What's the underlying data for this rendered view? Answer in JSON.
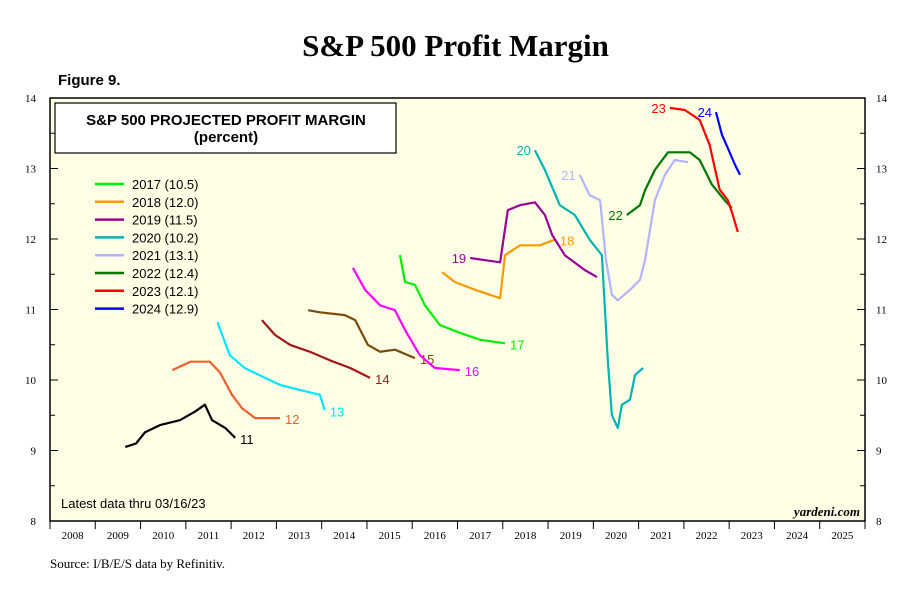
{
  "title": "S&P 500 Profit Margin",
  "figure_label": "Figure 9.",
  "source": "Source: I/B/E/S data by Refinitiv.",
  "chart_data": {
    "type": "line",
    "title": "S&P 500 PROJECTED PROFIT MARGIN",
    "subtitle": "(percent)",
    "xlabel": "",
    "ylabel": "",
    "xlim": [
      2008,
      2026
    ],
    "ylim": [
      8,
      14
    ],
    "yticks": [
      8,
      9,
      10,
      11,
      12,
      13,
      14
    ],
    "xtick_labels": [
      "2008",
      "2009",
      "2010",
      "2011",
      "2012",
      "2013",
      "2014",
      "2015",
      "2016",
      "2017",
      "2018",
      "2019",
      "2020",
      "2021",
      "2022",
      "2023",
      "2024",
      "2025"
    ],
    "annotation": "Latest data thru 03/16/23",
    "watermark": "yardeni.com",
    "legend_position": "top-left",
    "series": [
      {
        "name": "2011",
        "label": "11",
        "color": "#000000",
        "legend": null,
        "x": [
          2009.66,
          2009.9,
          2010.1,
          2010.43,
          2010.87,
          2011.2,
          2011.42,
          2011.58,
          2011.87,
          2012.09
        ],
        "y": [
          9.05,
          9.1,
          9.26,
          9.36,
          9.43,
          9.55,
          9.65,
          9.43,
          9.32,
          9.18
        ]
      },
      {
        "name": "2012",
        "label": "12",
        "color": "#ee6030",
        "legend": null,
        "x": [
          2010.7,
          2011.1,
          2011.53,
          2011.75,
          2012.02,
          2012.24,
          2012.53,
          2013.08
        ],
        "y": [
          10.14,
          10.26,
          10.26,
          10.11,
          9.79,
          9.6,
          9.46,
          9.46
        ]
      },
      {
        "name": "2013",
        "label": "13",
        "color": "#00e5ff",
        "legend": null,
        "x": [
          2011.7,
          2011.97,
          2012.3,
          2012.75,
          2013.08,
          2013.52,
          2013.96,
          2014.07
        ],
        "y": [
          10.82,
          10.35,
          10.17,
          10.03,
          9.93,
          9.86,
          9.79,
          9.57
        ]
      },
      {
        "name": "2014",
        "label": "14",
        "color": "#a01818",
        "legend": null,
        "x": [
          2012.68,
          2012.97,
          2013.3,
          2013.74,
          2014.18,
          2014.63,
          2015.07
        ],
        "y": [
          10.85,
          10.64,
          10.5,
          10.4,
          10.28,
          10.17,
          10.03
        ]
      },
      {
        "name": "2015",
        "label": "15",
        "color": "#7a4a0a",
        "legend": null,
        "x": [
          2013.7,
          2013.96,
          2014.51,
          2014.74,
          2015.02,
          2015.29,
          2015.62,
          2016.06
        ],
        "y": [
          10.99,
          10.96,
          10.92,
          10.85,
          10.5,
          10.4,
          10.43,
          10.31
        ]
      },
      {
        "name": "2016",
        "label": "16",
        "color": "#ff00ff",
        "legend": null,
        "x": [
          2014.69,
          2014.96,
          2015.29,
          2015.62,
          2015.84,
          2016.17,
          2016.5,
          2017.05
        ],
        "y": [
          11.59,
          11.28,
          11.06,
          10.99,
          10.71,
          10.35,
          10.17,
          10.14
        ]
      },
      {
        "name": "2017",
        "label": "17",
        "color": "#00ee00",
        "legend": "2017 (10.5)",
        "x": [
          2015.73,
          2015.84,
          2016.06,
          2016.28,
          2016.61,
          2017.05,
          2017.5,
          2018.05
        ],
        "y": [
          11.77,
          11.39,
          11.35,
          11.06,
          10.78,
          10.67,
          10.57,
          10.52
        ]
      },
      {
        "name": "2018",
        "label": "18",
        "color": "#ff9900",
        "legend": "2018 (12.0)",
        "x": [
          2016.66,
          2016.94,
          2017.39,
          2017.94,
          2018.05,
          2018.38,
          2018.82,
          2019.15
        ],
        "y": [
          11.53,
          11.39,
          11.28,
          11.16,
          11.77,
          11.91,
          11.91,
          11.99
        ]
      },
      {
        "name": "2019",
        "label": "19",
        "color": "#990099",
        "legend": "2019 (11.5)",
        "x": [
          2017.28,
          2017.94,
          2018.11,
          2018.38,
          2018.71,
          2018.93,
          2019.09,
          2019.37,
          2019.81,
          2020.08
        ],
        "y": [
          11.73,
          11.67,
          12.41,
          12.48,
          12.52,
          12.34,
          12.06,
          11.77,
          11.56,
          11.46
        ]
      },
      {
        "name": "2020",
        "label": "20",
        "color": "#00b3b3",
        "legend": "2020 (10.2)",
        "x": [
          2018.71,
          2018.93,
          2019.26,
          2019.59,
          2019.92,
          2020.19,
          2020.32,
          2020.41,
          2020.54,
          2020.63,
          2020.81,
          2020.92,
          2021.1
        ],
        "y": [
          13.26,
          12.98,
          12.48,
          12.34,
          11.99,
          11.77,
          10.28,
          9.5,
          9.32,
          9.65,
          9.72,
          10.07,
          10.17
        ]
      },
      {
        "name": "2021",
        "label": "21",
        "color": "#b3b3ff",
        "legend": "2021 (13.1)",
        "x": [
          2019.7,
          2019.92,
          2020.15,
          2020.28,
          2020.41,
          2020.54,
          2020.81,
          2021.03,
          2021.14,
          2021.36,
          2021.58,
          2021.8,
          2022.09
        ],
        "y": [
          12.91,
          12.62,
          12.55,
          11.7,
          11.21,
          11.13,
          11.28,
          11.42,
          11.7,
          12.55,
          12.91,
          13.12,
          13.09
        ]
      },
      {
        "name": "2022",
        "label": "22",
        "color": "#007700",
        "legend": "2022 (12.4)",
        "x": [
          2020.74,
          2021.03,
          2021.14,
          2021.36,
          2021.65,
          2022.13,
          2022.35,
          2022.62,
          2022.9,
          2023.06
        ],
        "y": [
          12.34,
          12.48,
          12.69,
          12.98,
          13.23,
          13.23,
          13.12,
          12.77,
          12.55,
          12.44
        ]
      },
      {
        "name": "2023",
        "label": "23",
        "color": "#ff0000",
        "legend": "2023 (12.1)",
        "x": [
          2021.69,
          2022.02,
          2022.35,
          2022.57,
          2022.79,
          2022.97,
          2023.08,
          2023.19
        ],
        "y": [
          13.86,
          13.83,
          13.69,
          13.33,
          12.7,
          12.55,
          12.34,
          12.1
        ]
      },
      {
        "name": "2024",
        "label": "24",
        "color": "#0000ff",
        "legend": "2024 (12.9)",
        "x": [
          2022.71,
          2022.84,
          2022.97,
          2023.13,
          2023.24
        ],
        "y": [
          13.8,
          13.48,
          13.29,
          13.05,
          12.91
        ]
      }
    ]
  }
}
